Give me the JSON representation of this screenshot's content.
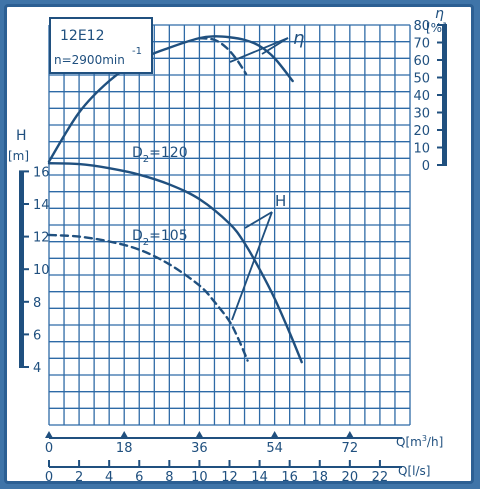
{
  "colors": {
    "ink": "#20507f",
    "grid": "#2e6aa6",
    "frame": "#2c5f93",
    "bg": "#3f74a8"
  },
  "chart_data": {
    "type": "line",
    "pump_label": "12E12",
    "speed_label": "n=2900min",
    "speed_exp": "-1",
    "grid": true,
    "x_axes": [
      {
        "label": "Q[m",
        "label_sup": "3",
        "label_tail": "/h]",
        "range": [
          0,
          86.4
        ],
        "ticks": [
          {
            "v": 0,
            "t": "0"
          },
          {
            "v": 18,
            "t": "18"
          },
          {
            "v": 36,
            "t": "36"
          },
          {
            "v": 54,
            "t": "54"
          },
          {
            "v": 72,
            "t": "72"
          }
        ]
      },
      {
        "label": "Q[l/s]",
        "range": [
          0,
          24
        ],
        "ticks": [
          {
            "v": 0,
            "t": "0"
          },
          {
            "v": 2,
            "t": "2"
          },
          {
            "v": 4,
            "t": "4"
          },
          {
            "v": 6,
            "t": "6"
          },
          {
            "v": 8,
            "t": "8"
          },
          {
            "v": 10,
            "t": "10"
          },
          {
            "v": 12,
            "t": "12"
          },
          {
            "v": 14,
            "t": "14"
          },
          {
            "v": 16,
            "t": "16"
          },
          {
            "v": 18,
            "t": "18"
          },
          {
            "v": 20,
            "t": "20"
          },
          {
            "v": 22,
            "t": "22"
          }
        ]
      }
    ],
    "y_axes": [
      {
        "label": "H",
        "unit": "[m]",
        "range": [
          4,
          16
        ],
        "ticks": [
          "4",
          "6",
          "8",
          "10",
          "12",
          "14",
          "16"
        ]
      },
      {
        "label": "η",
        "unit": "[%]",
        "range": [
          0,
          80
        ],
        "ticks": [
          "0",
          "10",
          "20",
          "30",
          "40",
          "50",
          "60",
          "70",
          "80"
        ]
      }
    ],
    "series": [
      {
        "name": "η",
        "axis": "eta",
        "style": "solid",
        "x": [
          0,
          2,
          4,
          6,
          8,
          10,
          11,
          12,
          13,
          14,
          15,
          16.2
        ],
        "y": [
          2,
          30,
          48,
          60,
          67,
          72.5,
          73.5,
          73,
          71.5,
          68,
          61,
          48
        ]
      },
      {
        "name": "η",
        "axis": "eta",
        "style": "dashed",
        "x": [
          10,
          11,
          11.8,
          12.5,
          13.1
        ],
        "y": [
          72.5,
          71.5,
          67,
          60,
          52
        ]
      },
      {
        "name": "D2=120",
        "axis": "H",
        "style": "solid",
        "x": [
          0,
          2,
          4,
          6,
          8,
          10,
          12,
          13,
          14,
          15,
          16,
          16.8
        ],
        "y": [
          16.5,
          16.45,
          16.2,
          15.8,
          15.2,
          14.3,
          12.8,
          11.6,
          10.0,
          8.2,
          6.1,
          4.3
        ]
      },
      {
        "name": "D2=105",
        "axis": "H",
        "style": "dashed",
        "x": [
          0,
          2,
          4,
          6,
          8,
          10,
          11,
          12,
          12.6,
          13.2
        ],
        "y": [
          12.1,
          12.0,
          11.7,
          11.2,
          10.3,
          9.0,
          8.0,
          6.8,
          5.7,
          4.4
        ]
      }
    ],
    "labels": {
      "eta": "η",
      "h": "H",
      "d_prefix": "D",
      "d_sub": "2",
      "d120": "=120",
      "d105": "=105"
    }
  }
}
